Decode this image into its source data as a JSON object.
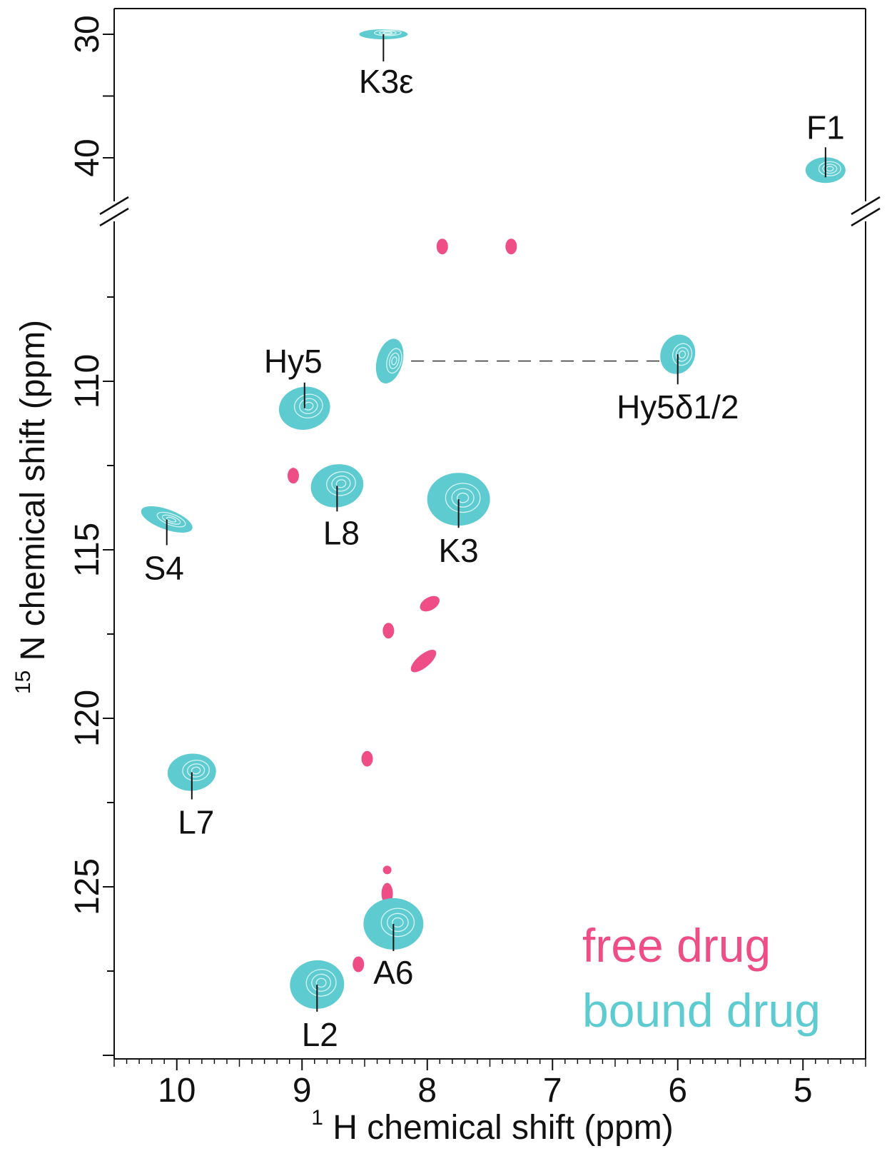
{
  "chart_data": {
    "type": "scatter",
    "title": "",
    "xlabel_prefix_sup": "1",
    "xlabel": "H chemical shift (ppm)",
    "ylabel_prefix_sup": "15",
    "ylabel": "N chemical shift (ppm)",
    "x_reversed": true,
    "xlim": [
      10.5,
      4.5
    ],
    "ylim_upper_panel": [
      28,
      42
    ],
    "ylim_lower_panel": [
      105,
      130
    ],
    "y_axis_broken": true,
    "grid": false,
    "x_ticks": [
      10,
      9,
      8,
      7,
      6,
      5
    ],
    "x_tick_labels": [
      "10",
      "9",
      "8",
      "7",
      "6",
      "5"
    ],
    "y_ticks_upper": [
      30,
      40
    ],
    "y_tick_labels_upper": [
      "30",
      "40"
    ],
    "y_ticks_lower": [
      110,
      115,
      120,
      125
    ],
    "y_tick_labels_lower": [
      "110",
      "115",
      "120",
      "125"
    ],
    "legend_placement": "bottom-right",
    "series": [
      {
        "name": "free drug",
        "color": "#EE4D86",
        "points": [
          {
            "x": 7.88,
            "y": 106.0
          },
          {
            "x": 7.33,
            "y": 106.0
          },
          {
            "x": 9.07,
            "y": 112.8
          },
          {
            "x": 7.98,
            "y": 116.6
          },
          {
            "x": 8.31,
            "y": 117.4
          },
          {
            "x": 8.03,
            "y": 118.3
          },
          {
            "x": 8.48,
            "y": 121.2
          },
          {
            "x": 8.32,
            "y": 124.5
          },
          {
            "x": 8.32,
            "y": 125.2
          },
          {
            "x": 8.55,
            "y": 127.3
          }
        ]
      },
      {
        "name": "bound drug",
        "color": "#5ECBD0",
        "points": [
          {
            "x": 8.35,
            "y": 30.0,
            "label": "K3ε"
          },
          {
            "x": 4.82,
            "y": 41.0,
            "label": "F1"
          },
          {
            "x": 8.3,
            "y": 109.4,
            "label": ""
          },
          {
            "x": 6.0,
            "y": 109.2,
            "label": "Hy5δ1/2"
          },
          {
            "x": 8.98,
            "y": 110.8,
            "label": "Hy5"
          },
          {
            "x": 8.72,
            "y": 113.1,
            "label": "L8"
          },
          {
            "x": 7.75,
            "y": 113.5,
            "label": "K3"
          },
          {
            "x": 10.08,
            "y": 114.1,
            "label": "S4"
          },
          {
            "x": 9.88,
            "y": 121.6,
            "label": "L7"
          },
          {
            "x": 8.27,
            "y": 126.1,
            "label": "A6"
          },
          {
            "x": 8.88,
            "y": 127.9,
            "label": "L2"
          }
        ]
      }
    ],
    "annotations": [
      {
        "type": "dashed-line",
        "from": {
          "x": 8.3,
          "y": 109.4
        },
        "to": {
          "x": 6.0,
          "y": 109.4
        }
      }
    ]
  }
}
